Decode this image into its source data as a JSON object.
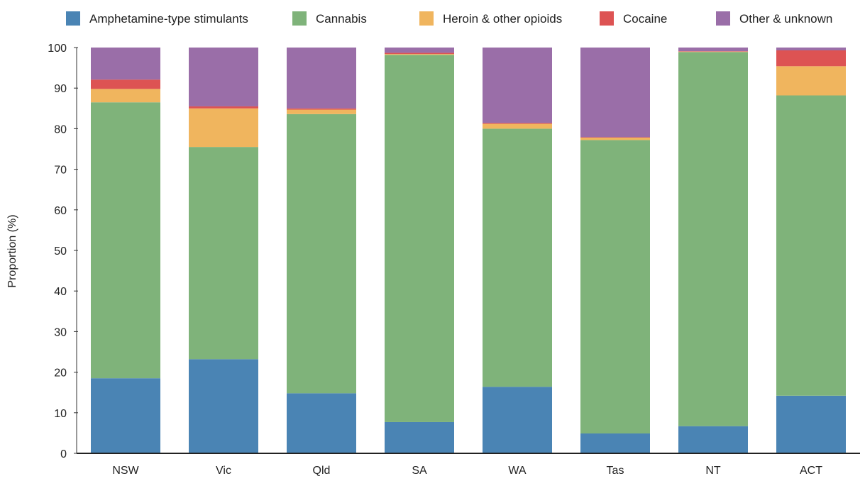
{
  "chart_data": {
    "type": "bar",
    "stacked": true,
    "title": "",
    "xlabel": "",
    "ylabel": "Proportion (%)",
    "ylim": [
      0,
      100
    ],
    "yticks": [
      0,
      10,
      20,
      30,
      40,
      50,
      60,
      70,
      80,
      90,
      100
    ],
    "grid": false,
    "legend_position": "top",
    "categories": [
      "NSW",
      "Vic",
      "Qld",
      "SA",
      "WA",
      "Tas",
      "NT",
      "ACT"
    ],
    "series": [
      {
        "name": "Amphetamine-type stimulants",
        "color": "#4a84b4",
        "values": [
          18.5,
          23.2,
          14.8,
          7.7,
          16.4,
          4.9,
          6.7,
          14.2
        ]
      },
      {
        "name": "Cannabis",
        "color": "#7fb37a",
        "values": [
          68.0,
          52.3,
          68.8,
          90.5,
          63.6,
          72.3,
          92.2,
          74.0
        ]
      },
      {
        "name": "Heroin & other opioids",
        "color": "#f0b55e",
        "values": [
          3.3,
          9.5,
          1.1,
          0.2,
          1.2,
          0.6,
          0.1,
          7.2
        ]
      },
      {
        "name": "Cocaine",
        "color": "#dd5353",
        "values": [
          2.3,
          0.5,
          0.3,
          0.3,
          0.2,
          0.1,
          0.1,
          3.9
        ]
      },
      {
        "name": "Other & unknown",
        "color": "#9a6ea8",
        "values": [
          7.9,
          14.5,
          15.0,
          1.3,
          18.6,
          22.1,
          0.9,
          0.7
        ]
      }
    ]
  }
}
